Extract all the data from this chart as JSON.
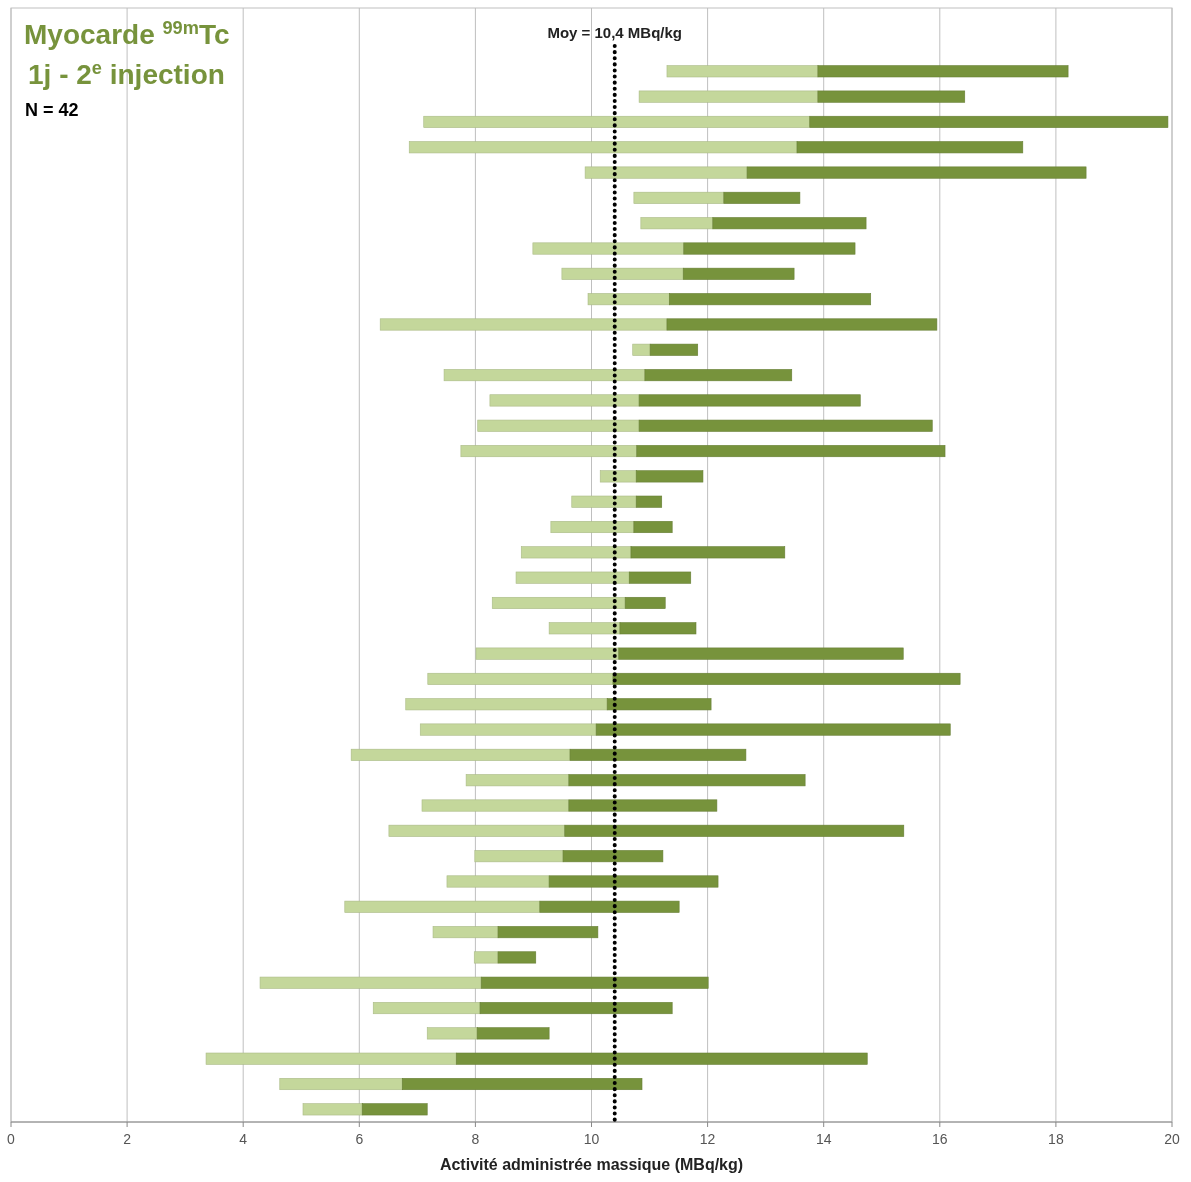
{
  "chart_data": {
    "type": "bar",
    "title": "Myocarde $^{99m}$Tc",
    "subtitle": "1j - 2$^{e}$ injection",
    "annotations": [
      "N = 42"
    ],
    "xlabel": "Activité administrée massique (MBq/kg)",
    "orientation": "horizontal",
    "categories": [
      null,
      null,
      null,
      null,
      null,
      null,
      null,
      null,
      null,
      null,
      null,
      null,
      null,
      null,
      null,
      null,
      null,
      null,
      null,
      null,
      null,
      null,
      null,
      null,
      null,
      null,
      null,
      null,
      null,
      null,
      null,
      null,
      null,
      null,
      null,
      null,
      null,
      null,
      null,
      null,
      null,
      null,
      null,
      null
    ],
    "series": [
      {
        "color": "#c4d79b",
        "base": [
          null,
          null,
          11.3,
          10.82,
          7.11,
          6.86,
          9.89,
          10.73,
          10.85,
          8.99,
          9.49,
          9.94,
          6.36,
          10.71,
          7.46,
          8.25,
          8.04,
          7.75,
          10.15,
          9.66,
          9.3,
          8.79,
          8.7,
          8.29,
          9.27,
          8.01,
          7.18,
          6.8,
          7.05,
          5.86,
          7.84,
          7.08,
          6.51,
          7.99,
          7.51,
          5.75,
          7.27,
          7.98,
          4.29,
          6.24,
          7.17,
          3.36,
          4.63,
          5.03
        ],
        "values": [
          null,
          null,
          2.6,
          3.08,
          6.65,
          6.68,
          2.79,
          1.55,
          1.24,
          2.6,
          2.09,
          1.4,
          4.94,
          0.3,
          3.46,
          2.57,
          2.78,
          3.03,
          0.62,
          1.11,
          1.43,
          1.89,
          1.95,
          2.29,
          1.22,
          2.46,
          3.19,
          3.47,
          3.03,
          3.77,
          1.77,
          2.53,
          3.03,
          1.52,
          1.76,
          3.36,
          1.12,
          0.41,
          3.81,
          1.84,
          0.86,
          4.31,
          2.11,
          1.02
        ]
      },
      {
        "color": "#77933c",
        "base": [
          null,
          null,
          13.9,
          13.9,
          13.76,
          13.54,
          12.68,
          12.28,
          12.09,
          11.59,
          11.58,
          11.34,
          11.3,
          11.01,
          10.92,
          10.82,
          10.82,
          10.78,
          10.77,
          10.77,
          10.73,
          10.68,
          10.65,
          10.58,
          10.49,
          10.47,
          10.37,
          10.27,
          10.08,
          9.63,
          9.61,
          9.61,
          9.54,
          9.51,
          9.27,
          9.11,
          8.39,
          8.39,
          8.1,
          8.08,
          8.03,
          7.67,
          6.74,
          6.05
        ],
        "values": [
          null,
          null,
          4.31,
          2.53,
          6.17,
          3.89,
          5.84,
          1.31,
          2.64,
          2.95,
          1.91,
          3.47,
          4.65,
          0.82,
          2.53,
          3.81,
          5.05,
          5.31,
          1.15,
          0.44,
          0.66,
          2.65,
          1.06,
          0.69,
          1.31,
          4.9,
          5.98,
          1.79,
          6.1,
          3.03,
          4.07,
          2.55,
          5.84,
          1.72,
          2.91,
          2.4,
          1.72,
          0.65,
          3.91,
          3.31,
          1.24,
          7.08,
          4.13,
          1.12
        ]
      }
    ],
    "xlim": [
      0,
      20
    ],
    "xticks": [
      0,
      2,
      4,
      6,
      8,
      10,
      12,
      14,
      16,
      18,
      20
    ],
    "grid": "x",
    "ref_lines": [
      {
        "axis": "x",
        "value": 10.4,
        "label": "Moy = 10,4 MBq/kg",
        "color": "#000000",
        "line_style": "dotted"
      }
    ]
  }
}
